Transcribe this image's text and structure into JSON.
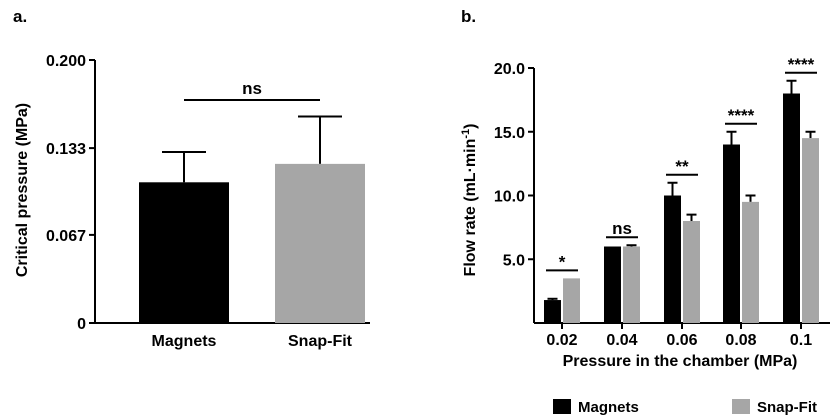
{
  "chart_data": [
    {
      "panel": "a.",
      "type": "bar",
      "categories": [
        "Magnets",
        "Snap-Fit"
      ],
      "values": [
        0.107,
        0.121
      ],
      "errors": [
        0.023,
        0.036
      ],
      "colors": [
        "#000000",
        "#a6a6a6"
      ],
      "ylabel": "Critical pressure (MPa)",
      "yticks": [
        "0",
        "0.067",
        "0.133",
        "0.200"
      ],
      "ylim": [
        0,
        0.2
      ],
      "significance": [
        {
          "label": "ns",
          "from": 0,
          "to": 1
        }
      ]
    },
    {
      "panel": "b.",
      "type": "bar",
      "categories": [
        "0.02",
        "0.04",
        "0.06",
        "0.08",
        "0.1"
      ],
      "series": [
        {
          "name": "Magnets",
          "color": "#000000",
          "values": [
            1.8,
            6.0,
            10.0,
            14.0,
            18.0
          ],
          "errors": [
            0.1,
            0.0,
            1.0,
            1.0,
            1.0
          ]
        },
        {
          "name": "Snap-Fit",
          "color": "#a6a6a6",
          "values": [
            3.5,
            6.0,
            8.0,
            9.5,
            14.5
          ],
          "errors": [
            0.0,
            0.1,
            0.5,
            0.5,
            0.5
          ]
        }
      ],
      "xlabel": "Pressure in the chamber (MPa)",
      "ylabel_main": "Flow rate (mL·min",
      "ylabel_sup": "-1",
      "ylabel_close": ")",
      "yticks": [
        "5.0",
        "10.0",
        "15.0",
        "20.0"
      ],
      "ytick_values": [
        5,
        10,
        15,
        20
      ],
      "ylim": [
        0,
        20
      ],
      "significance": [
        "*",
        "ns",
        "**",
        "****",
        "****"
      ],
      "legend_position": "bottom"
    }
  ]
}
